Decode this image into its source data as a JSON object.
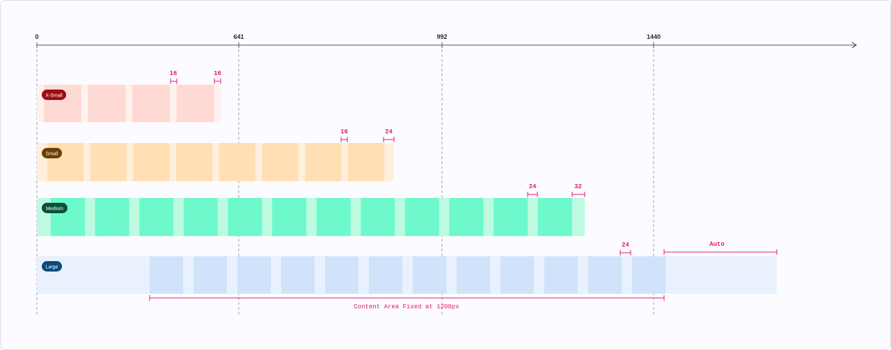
{
  "axis": {
    "ticks": [
      {
        "label": "0"
      },
      {
        "label": "641"
      },
      {
        "label": "992"
      },
      {
        "label": "1440"
      }
    ]
  },
  "breakpoints": [
    {
      "name": "X-Small",
      "columns": 4,
      "gutter": "16",
      "margin": "16",
      "colors": {
        "container": "#fff1ee",
        "column": "#ffdad4",
        "badge": "#9b0d12"
      }
    },
    {
      "name": "Small",
      "columns": 8,
      "gutter": "16",
      "margin": "24",
      "colors": {
        "container": "#ffefdb",
        "column": "#ffdfb3",
        "badge": "#6b3f05"
      }
    },
    {
      "name": "Medium",
      "columns": 12,
      "gutter": "24",
      "margin": "32",
      "colors": {
        "container": "#bdfbe1",
        "column": "#6ef9cd",
        "badge": "#0a5039"
      }
    },
    {
      "name": "Large",
      "columns": 12,
      "gutter": "24",
      "margin": "Auto",
      "colors": {
        "container": "#e8f1fd",
        "column": "#d0e3fb",
        "badge": "#0c4a7d"
      }
    }
  ],
  "content_area_label": "Content Area Fixed at 1200px",
  "colors": {
    "axis": "#4b5563",
    "guide": "#9ca3af",
    "dimension": "#e0197a"
  }
}
